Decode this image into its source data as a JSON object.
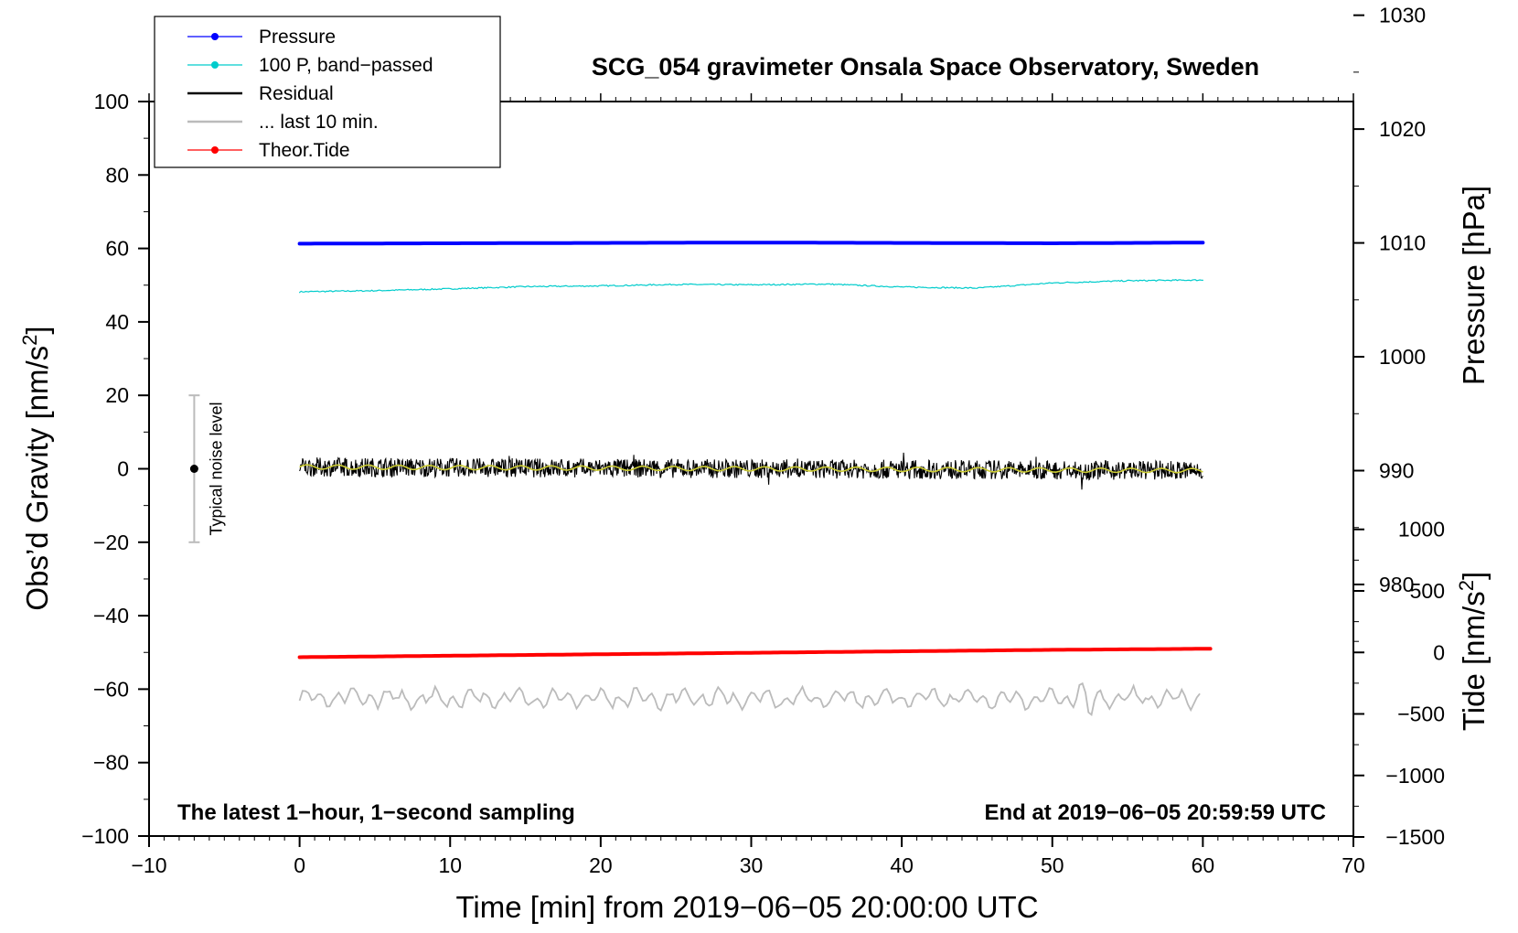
{
  "title": "SCG_054 gravimeter Onsala Space Observatory, Sweden",
  "legend": {
    "items": [
      {
        "label": "Pressure",
        "color": "#0000ff",
        "marker": "dot"
      },
      {
        "label": "100 P, band−passed",
        "color": "#00cccc",
        "marker": "dot"
      },
      {
        "label": "Residual",
        "color": "#000000",
        "marker": "line"
      },
      {
        "label": "... last 10 min.",
        "color": "#bbbbbb",
        "marker": "line"
      },
      {
        "label": "Theor.Tide",
        "color": "#ff0000",
        "marker": "dot"
      }
    ]
  },
  "notes": {
    "left": "The latest 1−hour, 1−second sampling",
    "right": "End at 2019−06−05 20:59:59 UTC"
  },
  "noise": {
    "label": "Typical noise level",
    "center": 0,
    "halfwidth": 20,
    "x": -7
  },
  "chart_data": {
    "type": "line",
    "title": "SCG_054 gravimeter Onsala Space Observatory, Sweden",
    "xlabel": "Time [min] from 2019−06−05 20:00:00 UTC",
    "ylabel_left": "Obs’d Gravity [nm/s",
    "ylabel_left_sup": "2",
    "ylabel_left_end": "]",
    "ylabel_pressure": "Pressure [hPa]",
    "ylabel_tide": "Tide [nm/s",
    "ylabel_tide_sup": "2",
    "ylabel_tide_end": "]",
    "xlim": [
      -10,
      70
    ],
    "ylim": [
      -100,
      100
    ],
    "xticks": [
      -10,
      0,
      10,
      20,
      30,
      40,
      50,
      60,
      70
    ],
    "xtick_labels": [
      "−10",
      "0",
      "10",
      "20",
      "30",
      "40",
      "50",
      "60",
      "70"
    ],
    "yticks": [
      -100,
      -80,
      -60,
      -40,
      -20,
      0,
      20,
      40,
      60,
      80,
      100
    ],
    "ytick_labels": [
      "−100",
      "−80",
      "−60",
      "−40",
      "−20",
      "0",
      "20",
      "40",
      "60",
      "80",
      "100"
    ],
    "pressure_axis": {
      "ticks": [
        980,
        990,
        1000,
        1010,
        1020,
        1030
      ],
      "tick_labels": [
        "980",
        "990",
        "1000",
        "1010",
        "1020",
        "1030"
      ],
      "gravity_equiv_at_1010": 61.5,
      "nm_per_hpa": 2.0
    },
    "tide_axis": {
      "ticks": [
        -1500,
        -1000,
        -500,
        0,
        500,
        1000
      ],
      "tick_labels": [
        "−1500",
        "−1000",
        "−500",
        "0",
        "500",
        "1000"
      ],
      "gravity_equiv_at_0": -50,
      "nm_per_unit": 0.05
    },
    "series": [
      {
        "name": "Pressure",
        "color": "#0000ff",
        "x": [
          0,
          10,
          20,
          30,
          40,
          50,
          60
        ],
        "y": [
          61.3,
          61.4,
          61.5,
          61.6,
          61.5,
          61.4,
          61.6
        ]
      },
      {
        "name": "100 P, band−passed",
        "color": "#00cccc",
        "x": [
          0,
          5,
          10,
          15,
          20,
          25,
          30,
          35,
          40,
          45,
          50,
          55,
          60
        ],
        "y": [
          48.2,
          48.5,
          49.0,
          49.6,
          49.8,
          50.2,
          50.1,
          50.3,
          49.5,
          49.2,
          50.6,
          51.2,
          51.4
        ]
      },
      {
        "name": "Residual",
        "color": "#000000",
        "x": [
          0,
          60
        ],
        "y": [
          0.5,
          -0.5
        ]
      },
      {
        "name": "... last 10 min.",
        "color": "#bbbbbb",
        "x": [
          0,
          60
        ],
        "y": [
          -62.5,
          -62.5
        ]
      },
      {
        "name": "Theor.Tide",
        "color": "#ff0000",
        "x": [
          0,
          10,
          20,
          30,
          40,
          50,
          60.5
        ],
        "y": [
          -51.3,
          -50.9,
          -50.5,
          -50.1,
          -49.7,
          -49.3,
          -49.0
        ]
      }
    ]
  }
}
